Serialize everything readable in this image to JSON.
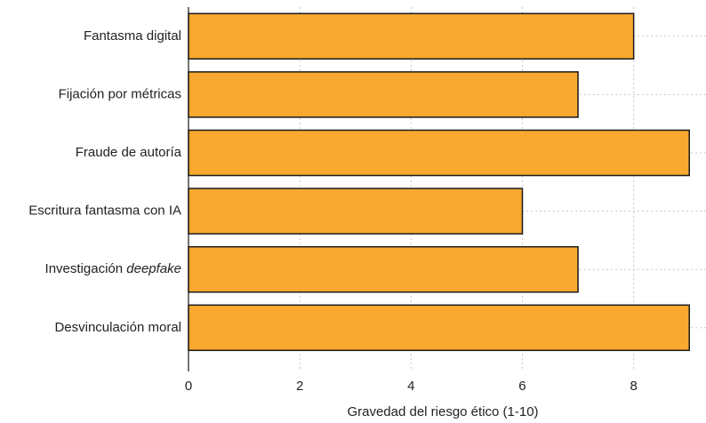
{
  "chart_data": {
    "type": "bar",
    "orientation": "horizontal",
    "categories": [
      {
        "text": "Fantasma digital",
        "emph": ""
      },
      {
        "text": "Fijación por métricas",
        "emph": ""
      },
      {
        "text": "Fraude de autoría",
        "emph": ""
      },
      {
        "text": "Escritura fantasma con IA",
        "emph": ""
      },
      {
        "text": "Investigación ",
        "emph": "deepfake"
      },
      {
        "text": "Desvinculación moral",
        "emph": ""
      }
    ],
    "values": [
      8,
      7,
      9,
      6,
      7,
      9
    ],
    "xlabel": "Gravedad del riesgo ético (1-10)",
    "ylabel": "",
    "xlim": [
      0,
      9.3
    ],
    "xticks": [
      0,
      2,
      4,
      6,
      8
    ],
    "grid": true,
    "bar_color": "#F9A92F",
    "bar_edge_color": "#1a1a1a"
  }
}
